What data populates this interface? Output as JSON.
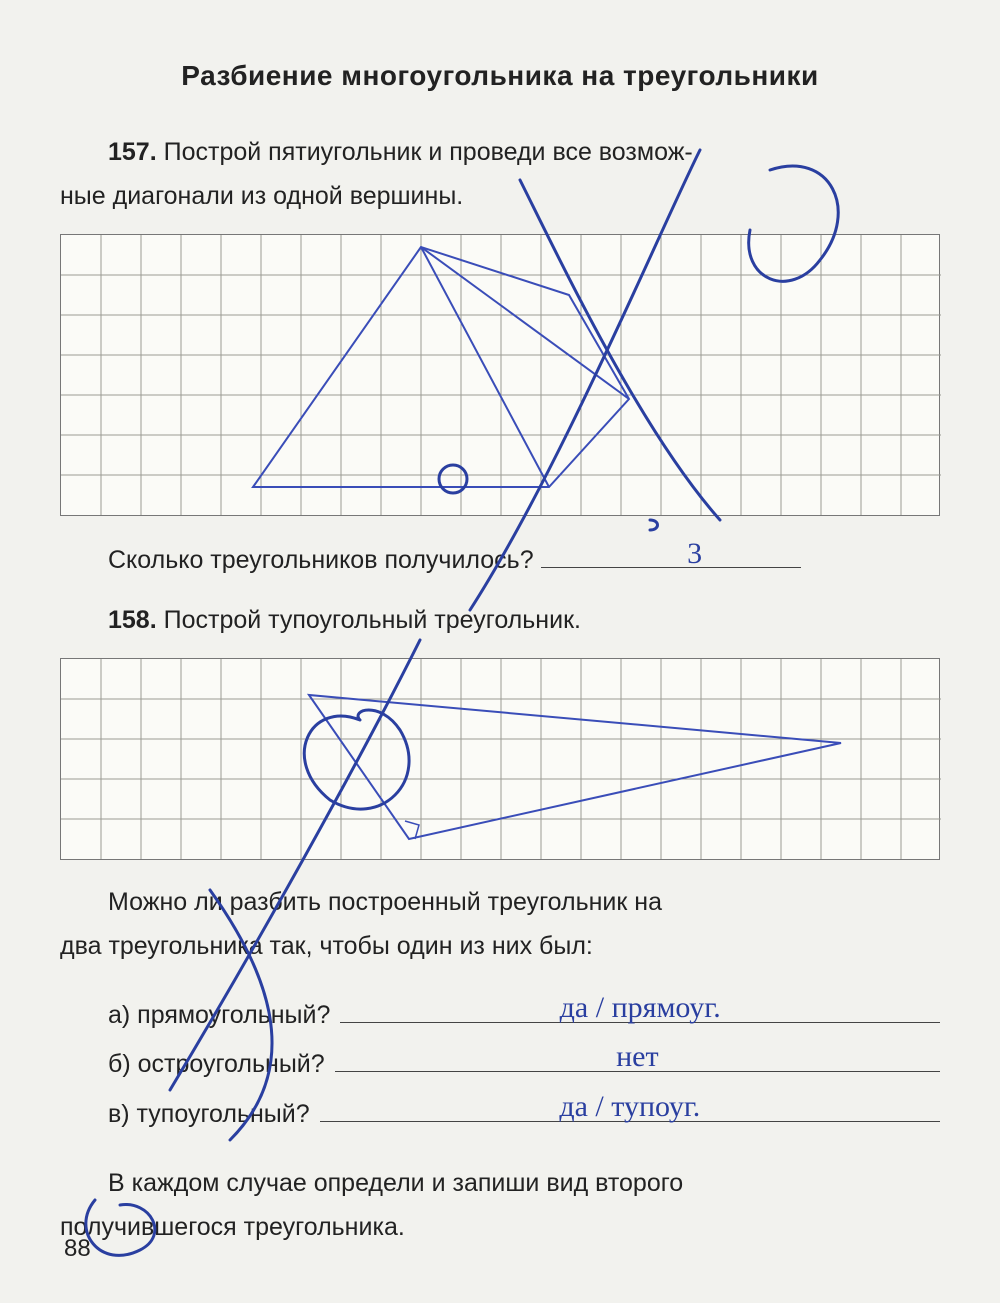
{
  "page": {
    "title": "Разбиение многоугольника на треугольники",
    "page_number": "88",
    "text_color": "#222222",
    "background_color": "#f2f2ee"
  },
  "task157": {
    "number": "157.",
    "text_a": "Построй пятиугольник и проведи все возмож-",
    "text_b": "ные диагонали из одной вершины.",
    "grid": {
      "cols": 22,
      "rows": 7,
      "cell": 40,
      "grid_color": "#9b9b93",
      "pentagon": {
        "points": [
          [
            9,
            0.3
          ],
          [
            4.8,
            6.3
          ],
          [
            12.2,
            6.3
          ],
          [
            14.2,
            4.1
          ],
          [
            12.7,
            1.5
          ]
        ],
        "diag_from": 0,
        "stroke": "#3a4db8",
        "stroke_width": 2
      }
    },
    "question": "Сколько треугольников получилось?",
    "answer": "3"
  },
  "task158": {
    "number": "158.",
    "text": "Построй тупоугольный треугольник.",
    "grid": {
      "cols": 22,
      "rows": 5,
      "cell": 40,
      "grid_color": "#9b9b93",
      "triangle": {
        "points": [
          [
            6.2,
            0.9
          ],
          [
            8.7,
            4.5
          ],
          [
            19.5,
            2.1
          ]
        ],
        "altitude_to": [
          8.7,
          4.5
        ],
        "stroke": "#3a4db8",
        "stroke_width": 2
      }
    },
    "q_intro_a": "Можно ли разбить построенный треугольник на",
    "q_intro_b": "два треугольника так, чтобы один из них был:",
    "sub_a": {
      "label": "а) прямоугольный?",
      "answer": "да    / прямоуг."
    },
    "sub_b": {
      "label": "б) остроугольный?",
      "answer": "нет"
    },
    "sub_c": {
      "label": "в) тупоугольный?",
      "answer": "да    / тупоуг."
    },
    "tail_a": "В каждом случае определи и запиши вид второго",
    "tail_b": "получившегося треугольника."
  },
  "pen": {
    "color": "#2a3fa0",
    "width": 3
  }
}
